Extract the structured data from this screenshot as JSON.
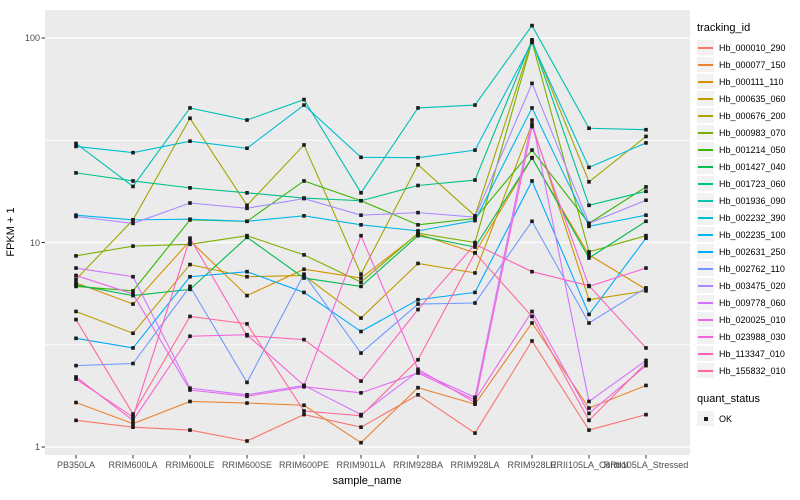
{
  "axes": {
    "x_label": "sample_name",
    "y_label": "FPKM + 1",
    "y_tick_labels": [
      "100",
      "10",
      "1"
    ],
    "y_tick_values": [
      100,
      10,
      1
    ],
    "x_tick_labels": [
      "PB350LA",
      "RRIM600LA",
      "RRIM600LE",
      "RRIM600SE",
      "RRIM600PE",
      "RRIM901LA",
      "RRIM928BA",
      "RRIM928LA",
      "RRIM928LE",
      "RRII105LA_Control",
      "RRII105LA_Stressed"
    ]
  },
  "legend": {
    "tracking_title": "tracking_id",
    "quant_title": "quant_status",
    "quant_items": [
      {
        "label": "OK",
        "marker": "black-square"
      }
    ]
  },
  "style": {
    "panel_bg": "#ebebeb",
    "grid_color": "#ffffff",
    "tick_color": "#333333",
    "axis_text_color": "#4d4d4d",
    "point_color": "#1a1a1a"
  },
  "chart_data": {
    "type": "line",
    "title": "",
    "xlabel": "sample_name",
    "ylabel": "FPKM + 1",
    "y_scale": "log10",
    "ylim": [
      0.91,
      137
    ],
    "grid": "on",
    "legend_position": "right",
    "major_gridlines": [
      1,
      10,
      100
    ],
    "minor_gridlines": [
      3.162,
      31.62
    ],
    "categories": [
      "PB350LA",
      "RRIM600LA",
      "RRIM600LE",
      "RRIM600SE",
      "RRIM600PE",
      "RRIM901LA",
      "RRIM928BA",
      "RRIM928LA",
      "RRIM928LE",
      "RRII105LA_Control",
      "RRII105LA_Stressed"
    ],
    "quant_status_all_points": "OK",
    "series": [
      {
        "name": "Hb_000010_290",
        "color": "#F8766D",
        "values": [
          1.35,
          1.25,
          1.21,
          1.07,
          1.44,
          1.25,
          1.8,
          1.17,
          3.3,
          1.21,
          1.44
        ]
      },
      {
        "name": "Hb_000077_150",
        "color": "#EA8331",
        "values": [
          1.65,
          1.3,
          1.67,
          1.64,
          1.6,
          1.05,
          1.95,
          1.62,
          4.04,
          1.55,
          2.0
        ]
      },
      {
        "name": "Hb_000111_110",
        "color": "#D89000",
        "values": [
          6.35,
          5.0,
          10.2,
          5.5,
          7.4,
          6.7,
          11.0,
          8.9,
          25.9,
          8.7,
          5.9
        ]
      },
      {
        "name": "Hb_000635_060",
        "color": "#C09B00",
        "values": [
          4.6,
          3.6,
          7.8,
          6.8,
          6.9,
          4.27,
          7.9,
          7.1,
          38.0,
          5.25,
          5.8
        ]
      },
      {
        "name": "Hb_000676_200",
        "color": "#A3A500",
        "values": [
          6.6,
          12.9,
          40.5,
          15.2,
          30.0,
          7.0,
          24.0,
          13.5,
          97.0,
          19.8,
          33.0
        ]
      },
      {
        "name": "Hb_000983_070",
        "color": "#7CAE00",
        "values": [
          8.6,
          9.6,
          9.8,
          10.8,
          8.7,
          6.4,
          11.1,
          10.0,
          96.0,
          9.0,
          10.8
        ]
      },
      {
        "name": "Hb_001214_050",
        "color": "#39B600",
        "values": [
          6.1,
          5.8,
          12.9,
          12.7,
          20.0,
          16.0,
          12.2,
          13.1,
          28.3,
          12.4,
          18.7
        ]
      },
      {
        "name": "Hb_001427_040",
        "color": "#00BB4E",
        "values": [
          6.2,
          5.5,
          5.9,
          10.6,
          6.7,
          6.1,
          10.8,
          9.5,
          26.0,
          8.4,
          12.7
        ]
      },
      {
        "name": "Hb_001723_060",
        "color": "#00C08B",
        "values": [
          21.9,
          20.0,
          18.5,
          17.5,
          16.5,
          16.0,
          19.0,
          20.2,
          98.0,
          15.2,
          17.8
        ]
      },
      {
        "name": "Hb_001936_090",
        "color": "#00C0B2",
        "values": [
          30.5,
          18.8,
          45.5,
          39.7,
          50.0,
          17.5,
          45.5,
          47.0,
          115.0,
          36.2,
          35.6
        ]
      },
      {
        "name": "Hb_002232_390",
        "color": "#00BDD1",
        "values": [
          29.5,
          27.5,
          31.3,
          28.9,
          47.0,
          26.1,
          26.0,
          28.3,
          95.0,
          23.3,
          30.7
        ]
      },
      {
        "name": "Hb_002235_100",
        "color": "#00B6EB",
        "values": [
          13.6,
          12.9,
          13.0,
          12.7,
          13.5,
          12.2,
          11.4,
          12.8,
          45.5,
          12.0,
          13.6
        ]
      },
      {
        "name": "Hb_002631_250",
        "color": "#00AAFC",
        "values": [
          3.4,
          3.05,
          6.8,
          7.2,
          5.7,
          3.67,
          5.25,
          5.7,
          20.0,
          4.45,
          10.5
        ]
      },
      {
        "name": "Hb_002762_110",
        "color": "#7099FF",
        "values": [
          2.5,
          2.56,
          6.1,
          2.07,
          7.0,
          2.88,
          5.0,
          5.06,
          12.7,
          4.04,
          6.0
        ]
      },
      {
        "name": "Hb_003475_020",
        "color": "#AB88FF",
        "values": [
          13.4,
          12.4,
          15.6,
          14.7,
          16.4,
          13.6,
          14.0,
          13.3,
          60.0,
          12.4,
          16.1
        ]
      },
      {
        "name": "Hb_009778_060",
        "color": "#D076FD",
        "values": [
          7.5,
          6.8,
          1.94,
          1.8,
          2.0,
          1.44,
          2.34,
          1.75,
          39.7,
          1.67,
          2.65
        ]
      },
      {
        "name": "Hb_020025_010",
        "color": "#E868EF",
        "values": [
          6.9,
          5.6,
          1.9,
          1.77,
          1.97,
          1.84,
          2.3,
          1.7,
          4.6,
          1.46,
          2.5
        ]
      },
      {
        "name": "Hb_023988_030",
        "color": "#F863D7",
        "values": [
          2.2,
          1.35,
          3.48,
          3.54,
          2.0,
          10.8,
          2.4,
          1.65,
          36.9,
          6.1,
          7.5
        ]
      },
      {
        "name": "Hb_113347_010",
        "color": "#FF62BA",
        "values": [
          2.15,
          1.4,
          10.5,
          3.5,
          3.35,
          2.1,
          4.7,
          9.8,
          7.2,
          6.15,
          3.05
        ]
      },
      {
        "name": "Hb_155832_010",
        "color": "#FF6998",
        "values": [
          4.2,
          1.45,
          4.35,
          4.0,
          1.5,
          1.42,
          2.67,
          8.9,
          4.35,
          1.35,
          2.57
        ]
      }
    ]
  }
}
